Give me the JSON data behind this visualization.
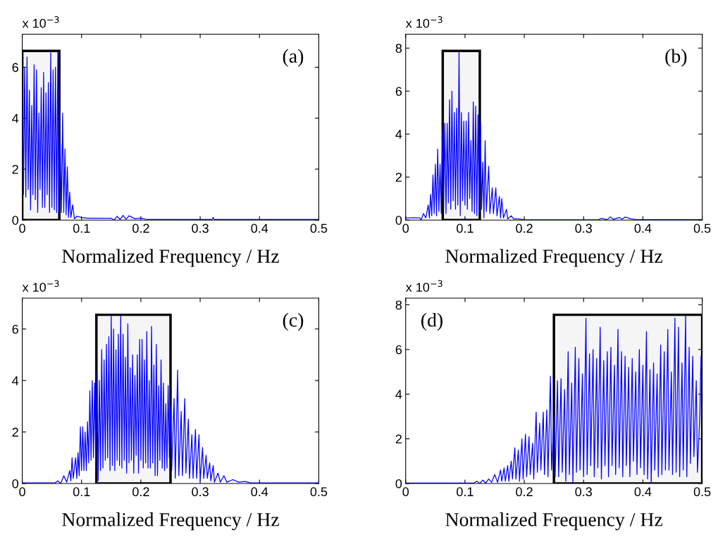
{
  "chart_data": [
    {
      "type": "line",
      "xlabel": "Normalized Frequency / Hz",
      "annotations": [
        "x 10$^{−3}$",
        "(a)"
      ],
      "xlim": [
        0,
        0.5
      ],
      "xticks": [
        0,
        0.1,
        0.2,
        0.3,
        0.4,
        0.5
      ],
      "ylim": [
        0,
        7.3
      ],
      "yticks": [
        0,
        2,
        4,
        6
      ],
      "bands": [
        {
          "axis": "x",
          "from": 0,
          "to": 0.0625,
          "color": "#000000"
        }
      ],
      "series": [
        {
          "color": "#0000ff",
          "x": [
            0,
            0.002,
            0.004,
            0.006,
            0.008,
            0.01,
            0.012,
            0.014,
            0.016,
            0.018,
            0.02,
            0.022,
            0.024,
            0.026,
            0.028,
            0.03,
            0.032,
            0.034,
            0.036,
            0.038,
            0.04,
            0.042,
            0.044,
            0.046,
            0.048,
            0.05,
            0.052,
            0.054,
            0.056,
            0.058,
            0.06,
            0.062,
            0.064,
            0.066,
            0.068,
            0.07,
            0.072,
            0.074,
            0.076,
            0.078,
            0.08,
            0.082,
            0.085,
            0.088,
            0.092,
            0.1,
            0.11,
            0.15,
            0.155,
            0.16,
            0.165,
            0.17,
            0.175,
            0.18,
            0.19,
            0.2,
            0.21,
            0.3,
            0.32,
            0.322,
            0.324,
            0.5
          ],
          "values": [
            5.6,
            1.0,
            6.0,
            0.9,
            6.4,
            1.2,
            5.1,
            0.4,
            4.5,
            1.0,
            6.1,
            0.8,
            5.9,
            0.3,
            4.2,
            1.2,
            5.2,
            0.5,
            5.8,
            0.5,
            5.0,
            1.0,
            5.4,
            0.3,
            6.6,
            0.5,
            5.9,
            0.4,
            6.0,
            0.3,
            6.6,
            0.3,
            3.0,
            0.3,
            4.2,
            0.3,
            2.8,
            0.2,
            2.1,
            0.1,
            1.1,
            0.1,
            0.6,
            0.05,
            0.15,
            0.1,
            0.07,
            0.07,
            0.0,
            0.15,
            0.02,
            0.18,
            0.03,
            0.17,
            0.05,
            0.08,
            0.02,
            0.02,
            0.02,
            0.1,
            0.02,
            0.02
          ]
        }
      ]
    },
    {
      "type": "line",
      "xlabel": "Normalized Frequency / Hz",
      "annotations": [
        "x 10$^{−3}$",
        "(b)"
      ],
      "xlim": [
        0,
        0.5
      ],
      "xticks": [
        0,
        0.1,
        0.2,
        0.3,
        0.4,
        0.5
      ],
      "ylim": [
        0,
        8.65
      ],
      "yticks": [
        0,
        2,
        4,
        6,
        8
      ],
      "bands": [
        {
          "axis": "x",
          "from": 0.0625,
          "to": 0.125,
          "color": "#000000"
        }
      ],
      "series": [
        {
          "color": "#0000ff",
          "x": [
            0,
            0.024,
            0.026,
            0.03,
            0.034,
            0.038,
            0.04,
            0.042,
            0.044,
            0.046,
            0.048,
            0.05,
            0.052,
            0.054,
            0.056,
            0.058,
            0.06,
            0.062,
            0.064,
            0.066,
            0.068,
            0.07,
            0.072,
            0.074,
            0.076,
            0.078,
            0.08,
            0.082,
            0.084,
            0.086,
            0.088,
            0.09,
            0.092,
            0.094,
            0.096,
            0.098,
            0.1,
            0.102,
            0.104,
            0.106,
            0.108,
            0.11,
            0.112,
            0.114,
            0.116,
            0.118,
            0.12,
            0.122,
            0.124,
            0.126,
            0.128,
            0.13,
            0.132,
            0.134,
            0.136,
            0.14,
            0.142,
            0.146,
            0.148,
            0.152,
            0.154,
            0.158,
            0.16,
            0.162,
            0.165,
            0.17,
            0.172,
            0.178,
            0.182,
            0.19,
            0.2,
            0.325,
            0.33,
            0.34,
            0.345,
            0.35,
            0.36,
            0.365,
            0.37,
            0.38,
            0.39,
            0.5
          ],
          "values": [
            0.1,
            0.1,
            0.0,
            0.3,
            0.1,
            0.7,
            0.1,
            1.2,
            0.2,
            2.1,
            0.3,
            2.6,
            0.2,
            3.3,
            0.4,
            2.6,
            0.3,
            4.2,
            0.5,
            4.5,
            0.3,
            4.5,
            0.8,
            5.6,
            0.5,
            6.0,
            0.9,
            5.0,
            0.5,
            5.2,
            0.7,
            7.8,
            0.2,
            5.0,
            0.9,
            4.6,
            0.7,
            4.6,
            0.5,
            5.0,
            1.0,
            3.7,
            0.4,
            5.5,
            0.3,
            5.3,
            0.2,
            4.9,
            0.3,
            4.5,
            0.5,
            2.7,
            0.1,
            3.7,
            0.4,
            2.5,
            0.3,
            1.5,
            0.3,
            1.5,
            0.2,
            1.1,
            0.1,
            1.0,
            0.1,
            0.5,
            0.05,
            0.2,
            0.05,
            0.05,
            0.01,
            0.01,
            0.08,
            0.02,
            0.15,
            0.03,
            0.12,
            0.04,
            0.14,
            0.05,
            0.02,
            0.02
          ]
        }
      ]
    },
    {
      "type": "line",
      "xlabel": "Normalized Frequency / Hz",
      "annotations": [
        "x 10$^{−3}$",
        "(c)"
      ],
      "xlim": [
        0,
        0.5
      ],
      "xticks": [
        0,
        0.1,
        0.2,
        0.3,
        0.4,
        0.5
      ],
      "ylim": [
        0,
        7.2
      ],
      "yticks": [
        0,
        2,
        4,
        6
      ],
      "bands": [
        {
          "axis": "x",
          "from": 0.125,
          "to": 0.25,
          "color": "#000000"
        }
      ],
      "series": [
        {
          "color": "#0000ff",
          "x": [
            0,
            0.055,
            0.06,
            0.065,
            0.07,
            0.075,
            0.08,
            0.082,
            0.084,
            0.086,
            0.09,
            0.092,
            0.094,
            0.096,
            0.098,
            0.1,
            0.102,
            0.104,
            0.106,
            0.108,
            0.11,
            0.112,
            0.114,
            0.116,
            0.118,
            0.12,
            0.122,
            0.124,
            0.126,
            0.128,
            0.13,
            0.132,
            0.134,
            0.136,
            0.138,
            0.14,
            0.142,
            0.144,
            0.146,
            0.148,
            0.15,
            0.152,
            0.154,
            0.156,
            0.158,
            0.16,
            0.162,
            0.164,
            0.166,
            0.168,
            0.17,
            0.172,
            0.174,
            0.176,
            0.178,
            0.18,
            0.182,
            0.184,
            0.186,
            0.188,
            0.19,
            0.192,
            0.194,
            0.196,
            0.198,
            0.2,
            0.202,
            0.204,
            0.206,
            0.208,
            0.21,
            0.212,
            0.214,
            0.216,
            0.218,
            0.22,
            0.222,
            0.224,
            0.226,
            0.228,
            0.23,
            0.232,
            0.234,
            0.236,
            0.238,
            0.24,
            0.242,
            0.244,
            0.246,
            0.248,
            0.25,
            0.252,
            0.256,
            0.258,
            0.262,
            0.264,
            0.268,
            0.27,
            0.274,
            0.276,
            0.28,
            0.282,
            0.286,
            0.288,
            0.292,
            0.294,
            0.298,
            0.3,
            0.304,
            0.306,
            0.31,
            0.312,
            0.316,
            0.318,
            0.322,
            0.324,
            0.33,
            0.334,
            0.34,
            0.345,
            0.355,
            0.365,
            0.375,
            0.385,
            0.5
          ],
          "values": [
            0.02,
            0.02,
            0.1,
            0.0,
            0.3,
            0.05,
            0.5,
            0.1,
            1.0,
            0.2,
            1.0,
            0.2,
            1.2,
            0.3,
            2.2,
            0.5,
            2.2,
            0.5,
            2.0,
            0.5,
            2.4,
            0.8,
            3.6,
            0.9,
            4.0,
            1.0,
            3.9,
            0.5,
            4.3,
            0.1,
            4.0,
            0.5,
            5.2,
            0.6,
            4.8,
            0.9,
            5.4,
            1.0,
            5.7,
            0.5,
            6.5,
            0.7,
            6.0,
            0.5,
            5.2,
            0.9,
            5.8,
            0.7,
            6.5,
            0.6,
            5.8,
            0.9,
            4.9,
            0.4,
            6.2,
            0.8,
            4.5,
            0.9,
            5.0,
            0.4,
            4.2,
            1.1,
            5.0,
            0.4,
            5.6,
            0.9,
            5.6,
            0.6,
            4.8,
            0.8,
            5.9,
            0.6,
            4.0,
            0.6,
            6.1,
            0.8,
            4.6,
            0.3,
            5.4,
            0.3,
            3.8,
            0.9,
            4.8,
            0.6,
            3.9,
            0.5,
            3.1,
            0.6,
            3.8,
            1.0,
            3.0,
            0.5,
            3.3,
            0.2,
            4.4,
            0.3,
            2.8,
            0.3,
            3.3,
            0.4,
            2.5,
            0.2,
            1.9,
            0.2,
            2.1,
            0.2,
            1.9,
            0.1,
            1.4,
            0.2,
            1.1,
            0.2,
            0.8,
            0.1,
            0.7,
            0.05,
            0.4,
            0.05,
            0.3,
            0.05,
            0.15,
            0.05,
            0.08,
            0.02,
            0.02
          ]
        }
      ]
    },
    {
      "type": "line",
      "xlabel": "Normalized Frequency / Hz",
      "annotations": [
        "x 10$^{−3}$",
        "(d)"
      ],
      "xlim": [
        0,
        0.5
      ],
      "xticks": [
        0,
        0.1,
        0.2,
        0.3,
        0.4,
        0.5
      ],
      "ylim": [
        0,
        8.3
      ],
      "yticks": [
        0,
        2,
        4,
        6,
        8
      ],
      "bands": [
        {
          "axis": "x",
          "from": 0.25,
          "to": 0.5,
          "color": "#000000"
        }
      ],
      "series": [
        {
          "color": "#0000ff",
          "x": [
            0,
            0.115,
            0.12,
            0.125,
            0.13,
            0.135,
            0.14,
            0.145,
            0.15,
            0.155,
            0.16,
            0.162,
            0.166,
            0.168,
            0.172,
            0.174,
            0.178,
            0.18,
            0.184,
            0.186,
            0.19,
            0.192,
            0.196,
            0.198,
            0.202,
            0.204,
            0.208,
            0.21,
            0.214,
            0.216,
            0.22,
            0.222,
            0.226,
            0.228,
            0.232,
            0.234,
            0.238,
            0.24,
            0.244,
            0.246,
            0.25,
            0.252,
            0.256,
            0.258,
            0.262,
            0.264,
            0.268,
            0.27,
            0.274,
            0.276,
            0.28,
            0.282,
            0.286,
            0.288,
            0.292,
            0.294,
            0.298,
            0.3,
            0.304,
            0.306,
            0.31,
            0.312,
            0.316,
            0.318,
            0.322,
            0.324,
            0.328,
            0.33,
            0.334,
            0.336,
            0.34,
            0.342,
            0.346,
            0.348,
            0.352,
            0.354,
            0.358,
            0.36,
            0.364,
            0.366,
            0.37,
            0.372,
            0.376,
            0.378,
            0.382,
            0.384,
            0.388,
            0.39,
            0.394,
            0.396,
            0.4,
            0.402,
            0.406,
            0.408,
            0.412,
            0.414,
            0.418,
            0.42,
            0.424,
            0.426,
            0.43,
            0.432,
            0.436,
            0.438,
            0.442,
            0.444,
            0.448,
            0.45,
            0.454,
            0.456,
            0.46,
            0.462,
            0.466,
            0.468,
            0.472,
            0.474,
            0.478,
            0.48,
            0.484,
            0.486,
            0.49,
            0.492,
            0.496,
            0.498
          ],
          "values": [
            0.02,
            0.02,
            0.1,
            0.0,
            0.15,
            0.02,
            0.2,
            0.05,
            0.4,
            0.05,
            0.6,
            0.1,
            0.7,
            0.1,
            0.8,
            0.1,
            1.0,
            0.2,
            1.6,
            0.2,
            1.5,
            0.1,
            2.0,
            0.2,
            2.2,
            0.3,
            2.1,
            0.4,
            1.8,
            0.2,
            3.2,
            0.5,
            2.7,
            0.6,
            3.2,
            0.4,
            3.3,
            0.3,
            4.8,
            0.6,
            3.0,
            0.3,
            4.6,
            0.3,
            4.7,
            0.5,
            4.2,
            0.1,
            5.9,
            0.4,
            4.5,
            0.0,
            6.1,
            0.5,
            5.6,
            0.6,
            4.9,
            0.3,
            7.4,
            0.4,
            5.8,
            0.8,
            6.0,
            0.3,
            5.6,
            0.7,
            7.0,
            0.2,
            5.5,
            0.8,
            5.9,
            0.3,
            6.1,
            0.8,
            5.3,
            0.4,
            6.9,
            0.7,
            5.9,
            0.3,
            5.7,
            0.8,
            5.2,
            0.3,
            5.6,
            1.0,
            5.0,
            0.4,
            6.0,
            0.7,
            5.3,
            0.4,
            6.8,
            0.2,
            5.1,
            0.0,
            5.4,
            0.6,
            4.9,
            0.3,
            6.2,
            0.4,
            5.9,
            0.6,
            6.9,
            0.6,
            5.0,
            0.4,
            7.4,
            0.5,
            7.0,
            0.3,
            5.4,
            0.6,
            7.5,
            0.3,
            6.1,
            0.9,
            5.7,
            1.2,
            4.6,
            0.5,
            3.1,
            5.7
          ]
        }
      ]
    }
  ]
}
